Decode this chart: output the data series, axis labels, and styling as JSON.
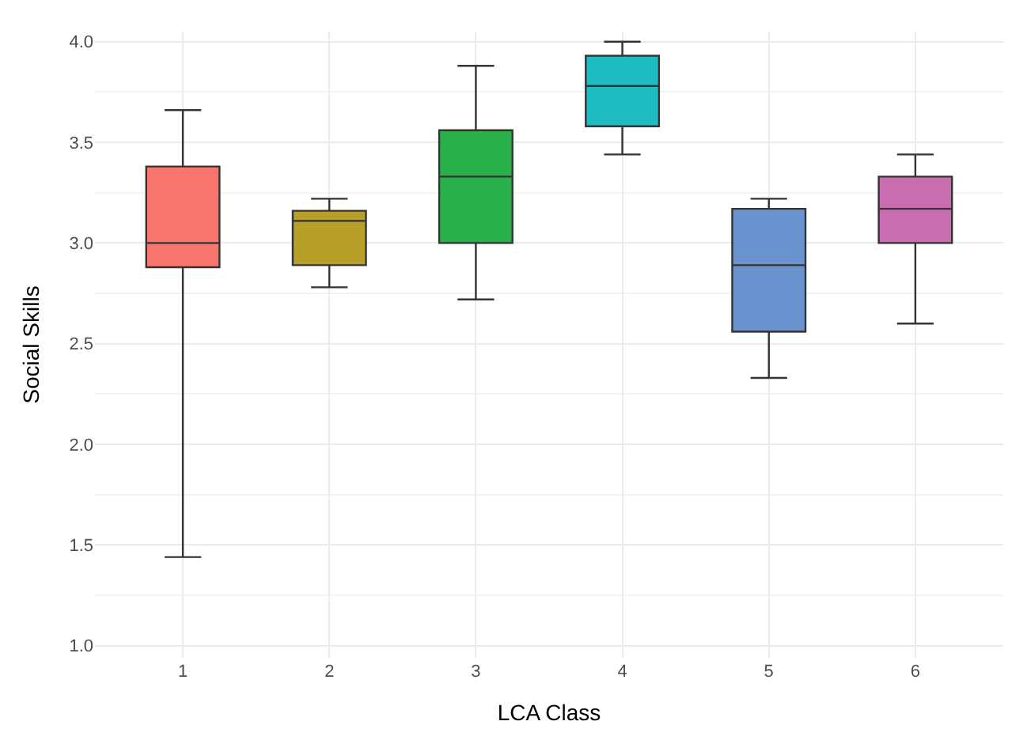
{
  "chart_data": {
    "type": "box",
    "xlabel": "LCA Class",
    "ylabel": "Social Skills",
    "categories": [
      "1",
      "2",
      "3",
      "4",
      "5",
      "6"
    ],
    "colors": [
      "#f8766d",
      "#b79f2a",
      "#2ab04a",
      "#1fbcc2",
      "#6b93cf",
      "#c86daf"
    ],
    "boxes": [
      {
        "low": 1.44,
        "q1": 2.88,
        "median": 3.0,
        "q3": 3.38,
        "high": 3.66
      },
      {
        "low": 2.78,
        "q1": 2.89,
        "median": 3.11,
        "q3": 3.16,
        "high": 3.22
      },
      {
        "low": 2.72,
        "q1": 3.0,
        "median": 3.33,
        "q3": 3.56,
        "high": 3.88
      },
      {
        "low": 3.44,
        "q1": 3.58,
        "median": 3.78,
        "q3": 3.93,
        "high": 4.0
      },
      {
        "low": 2.33,
        "q1": 2.56,
        "median": 2.89,
        "q3": 3.17,
        "high": 3.22
      },
      {
        "low": 2.6,
        "q1": 3.0,
        "median": 3.17,
        "q3": 3.33,
        "high": 3.44
      }
    ],
    "ylim": [
      0.94,
      4.05
    ],
    "yticks": [
      {
        "value": 1,
        "label": "1.0"
      },
      {
        "value": 1.5,
        "label": "1.5"
      },
      {
        "value": 2,
        "label": "2.0"
      },
      {
        "value": 2.5,
        "label": "2.5"
      },
      {
        "value": 3,
        "label": "3.0"
      },
      {
        "value": 3.5,
        "label": "3.5"
      },
      {
        "value": 4,
        "label": "4.0"
      }
    ],
    "grid": true
  }
}
